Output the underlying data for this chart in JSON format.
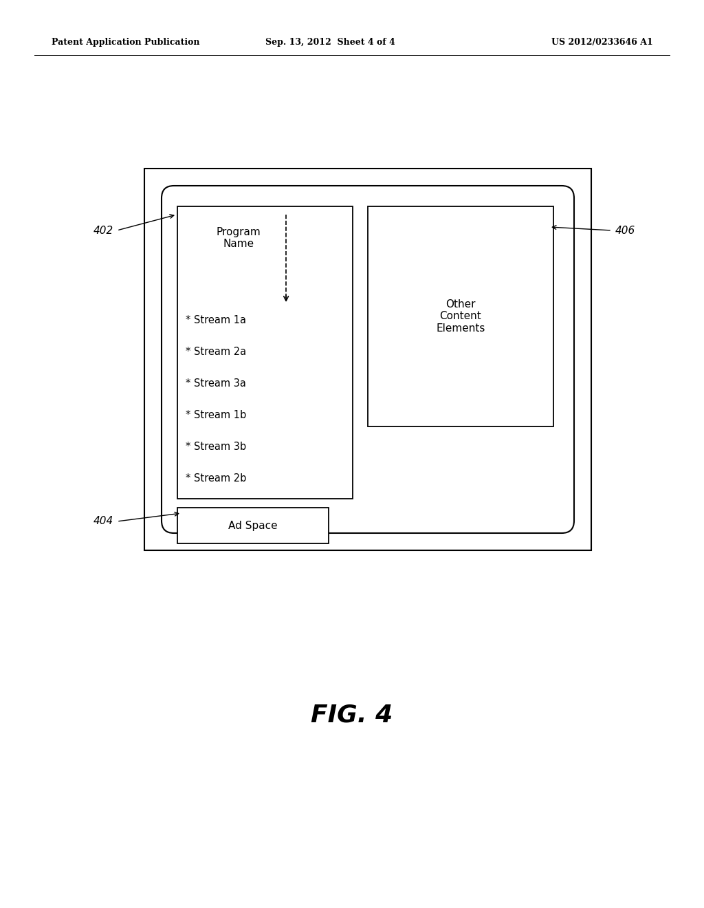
{
  "bg_color": "#ffffff",
  "header_left": "Patent Application Publication",
  "header_mid": "Sep. 13, 2012  Sheet 4 of 4",
  "header_right": "US 2012/0233646 A1",
  "fig_label": "FIG. 4",
  "label_402": "402",
  "label_404": "404",
  "label_406": "406",
  "program_name_text": "Program\nName",
  "streams": [
    "* Stream 1a",
    "* Stream 2a",
    "* Stream 3a",
    "* Stream 1b",
    "* Stream 3b",
    "* Stream 2b"
  ],
  "other_content_text": "Other\nContent\nElements",
  "ad_space_text": "Ad Space",
  "text_color": "#000000",
  "font_size_header": 9,
  "font_size_labels": 11,
  "font_size_content": 11,
  "font_size_fig": 26,
  "font_size_streams": 10.5
}
